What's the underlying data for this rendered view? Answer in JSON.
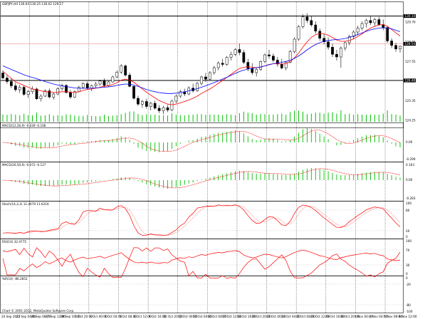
{
  "window": {
    "title": "GBPJPY,H4  130.04 130.25 130.02 129.17",
    "status_bar": "Chart © 2001-2012, MetaQuotes Software Corp."
  },
  "colors": {
    "background": "#ffffff",
    "grid": "#000000",
    "candle": "#000000",
    "ma_fast": "#ff0000",
    "ma_slow": "#0000ff",
    "macd_hist": "#00c000",
    "signal": "#ff0000",
    "oscillator": "#ff0000",
    "level_line": "#ff0000",
    "price_tag": "#000000"
  },
  "icons": {
    "window_control": "chart-tab-icon"
  },
  "price_panel": {
    "y_ticks": [
      "130.10",
      "129.76",
      "128.65",
      "127.55",
      "126.45",
      "125.35",
      "124.25"
    ],
    "price_tags": [
      "130.10",
      "128.54",
      "126.48"
    ],
    "hlines": [
      130.1,
      126.48
    ],
    "current_line": 128.54
  },
  "macd1": {
    "label": "MACD(12,26,9) -0.039 -0.106",
    "y_ticks": [
      "0.00",
      "-0.299"
    ]
  },
  "macd2": {
    "label": "MACD(26,50,9) -0.072 -0.127",
    "y_ticks": [
      "0.163",
      "0.00",
      "-0.283"
    ]
  },
  "stoch": {
    "label": "Stoch(14,3,3) 11.4679 11.6216",
    "y_ticks": [
      "100",
      "80",
      "20",
      "0"
    ]
  },
  "rsi": {
    "label": "RSI(14) 32.4775",
    "y_ticks": [
      "100",
      "70",
      "30",
      "0"
    ]
  },
  "wpr": {
    "label": "%R(14) -86.2852",
    "y_ticks": [
      "0",
      "-20",
      "-80",
      "-100"
    ]
  },
  "x_labels": [
    "24 Sep 2012",
    "25 Sep 04:00",
    "26 Sep 08:00",
    "27 Sep 12:00",
    "28 Sep 16:00",
    "1 Oct 20:00",
    "3 Oct 00:00",
    "4 Oct 04:00",
    "5 Oct 08:00",
    "8 Oct 12:00",
    "9 Oct 16:00",
    "10 Oct 20:00",
    "12 Oct 00:00",
    "15 Oct 04:00",
    "16 Oct 08:00",
    "17 Oct 12:00",
    "18 Oct 16:00",
    "19 Oct 20:00",
    "23 Oct 00:00",
    "24 Oct 04:00",
    "25 Oct 08:00",
    "26 Oct 12:00",
    "29 Oct 16:00",
    "30 Oct 20:00",
    "1 Nov 00:00",
    "2 Nov 04:00",
    "5 Nov 08:00",
    "6 Nov 12:00"
  ],
  "chart_data": {
    "type": "candlestick",
    "symbol": "GBPJPY",
    "timeframe": "H4",
    "ohlc": [
      [
        126.9,
        127.05,
        126.55,
        126.62
      ],
      [
        126.62,
        126.78,
        126.3,
        126.42
      ],
      [
        126.42,
        126.6,
        126.05,
        126.18
      ],
      [
        126.18,
        126.35,
        125.85,
        125.96
      ],
      [
        125.96,
        126.22,
        125.78,
        126.1
      ],
      [
        126.1,
        126.2,
        125.62,
        125.7
      ],
      [
        125.7,
        125.95,
        125.5,
        125.85
      ],
      [
        125.85,
        126.15,
        125.72,
        126.0
      ],
      [
        126.0,
        126.08,
        125.38,
        125.45
      ],
      [
        125.45,
        125.7,
        125.3,
        125.6
      ],
      [
        125.6,
        125.98,
        125.55,
        125.9
      ],
      [
        125.9,
        126.02,
        125.48,
        125.55
      ],
      [
        125.55,
        125.8,
        125.4,
        125.72
      ],
      [
        125.72,
        126.1,
        125.65,
        126.02
      ],
      [
        126.02,
        126.3,
        125.9,
        126.2
      ],
      [
        126.2,
        126.28,
        125.75,
        125.8
      ],
      [
        125.8,
        125.95,
        125.45,
        125.55
      ],
      [
        125.55,
        125.92,
        125.5,
        125.85
      ],
      [
        125.85,
        126.18,
        125.8,
        126.1
      ],
      [
        126.1,
        126.38,
        126.0,
        126.3
      ],
      [
        126.3,
        126.42,
        125.95,
        126.05
      ],
      [
        126.05,
        126.25,
        125.88,
        126.18
      ],
      [
        126.18,
        126.4,
        126.05,
        126.28
      ],
      [
        126.28,
        126.52,
        126.18,
        126.45
      ],
      [
        126.45,
        126.6,
        126.1,
        126.2
      ],
      [
        126.2,
        126.48,
        126.12,
        126.4
      ],
      [
        126.4,
        126.75,
        126.35,
        126.68
      ],
      [
        126.68,
        127.05,
        126.6,
        126.95
      ],
      [
        126.95,
        127.4,
        126.85,
        127.3
      ],
      [
        127.3,
        127.38,
        126.7,
        126.78
      ],
      [
        126.78,
        126.92,
        126.1,
        126.15
      ],
      [
        126.15,
        126.22,
        125.4,
        125.48
      ],
      [
        125.48,
        125.62,
        125.05,
        125.15
      ],
      [
        125.15,
        125.4,
        124.95,
        125.3
      ],
      [
        125.3,
        125.45,
        124.9,
        125.02
      ],
      [
        125.02,
        125.28,
        124.8,
        125.2
      ],
      [
        125.2,
        125.35,
        124.85,
        124.92
      ],
      [
        124.92,
        125.1,
        124.65,
        124.78
      ],
      [
        124.78,
        125.05,
        124.6,
        124.95
      ],
      [
        124.95,
        125.1,
        124.7,
        124.82
      ],
      [
        124.82,
        125.4,
        124.75,
        125.32
      ],
      [
        125.32,
        125.7,
        125.2,
        125.6
      ],
      [
        125.6,
        125.95,
        125.5,
        125.85
      ],
      [
        125.85,
        126.02,
        125.6,
        125.72
      ],
      [
        125.72,
        126.15,
        125.65,
        126.05
      ],
      [
        126.05,
        126.3,
        125.8,
        125.9
      ],
      [
        125.9,
        126.4,
        125.85,
        126.32
      ],
      [
        126.32,
        126.75,
        126.2,
        126.68
      ],
      [
        126.68,
        126.9,
        126.4,
        126.55
      ],
      [
        126.55,
        127.0,
        126.48,
        126.92
      ],
      [
        126.92,
        127.3,
        126.8,
        127.2
      ],
      [
        127.2,
        127.55,
        127.05,
        127.45
      ],
      [
        127.45,
        127.7,
        127.25,
        127.38
      ],
      [
        127.38,
        127.85,
        127.3,
        127.78
      ],
      [
        127.78,
        128.1,
        127.6,
        127.95
      ],
      [
        127.95,
        128.3,
        127.85,
        128.22
      ],
      [
        128.22,
        128.55,
        127.9,
        128.05
      ],
      [
        128.05,
        128.2,
        127.4,
        127.5
      ],
      [
        127.5,
        127.7,
        127.0,
        127.15
      ],
      [
        127.15,
        127.45,
        126.8,
        126.92
      ],
      [
        126.92,
        127.2,
        126.7,
        127.1
      ],
      [
        127.1,
        127.6,
        127.02,
        127.55
      ],
      [
        127.55,
        128.0,
        127.45,
        127.92
      ],
      [
        127.92,
        128.2,
        127.7,
        127.85
      ],
      [
        127.85,
        128.0,
        127.5,
        127.62
      ],
      [
        127.62,
        127.8,
        127.25,
        127.4
      ],
      [
        127.4,
        127.7,
        127.1,
        127.18
      ],
      [
        127.18,
        127.55,
        127.05,
        127.5
      ],
      [
        127.5,
        128.2,
        127.45,
        128.1
      ],
      [
        128.1,
        128.9,
        128.0,
        128.8
      ],
      [
        128.8,
        129.6,
        128.7,
        129.5
      ],
      [
        129.5,
        130.2,
        129.4,
        130.05
      ],
      [
        130.05,
        130.25,
        129.7,
        129.85
      ],
      [
        129.85,
        130.1,
        129.5,
        129.6
      ],
      [
        129.6,
        129.8,
        129.1,
        129.25
      ],
      [
        129.25,
        129.4,
        128.7,
        128.85
      ],
      [
        128.85,
        129.1,
        128.5,
        128.65
      ],
      [
        128.65,
        128.9,
        128.2,
        128.35
      ],
      [
        128.35,
        128.55,
        127.8,
        127.95
      ],
      [
        127.95,
        128.2,
        127.6,
        127.8
      ],
      [
        127.8,
        128.4,
        127.2,
        128.3
      ],
      [
        128.3,
        128.7,
        128.15,
        128.6
      ],
      [
        128.6,
        129.05,
        128.45,
        128.95
      ],
      [
        128.95,
        129.3,
        128.8,
        129.2
      ],
      [
        129.2,
        129.55,
        129.0,
        129.42
      ],
      [
        129.42,
        129.8,
        129.3,
        129.68
      ],
      [
        129.68,
        129.95,
        129.45,
        129.85
      ],
      [
        129.85,
        130.1,
        129.6,
        129.72
      ],
      [
        129.72,
        130.0,
        129.5,
        129.9
      ],
      [
        129.9,
        130.05,
        129.55,
        129.62
      ],
      [
        129.62,
        129.9,
        129.3,
        129.45
      ],
      [
        129.45,
        129.55,
        128.6,
        128.7
      ],
      [
        128.7,
        128.85,
        128.3,
        128.45
      ],
      [
        128.45,
        128.6,
        128.1,
        128.25
      ],
      [
        128.25,
        128.45,
        128.05,
        128.4
      ]
    ],
    "ma_fast": [
      127.0,
      126.8,
      126.6,
      126.4,
      126.3,
      126.2,
      126.1,
      126.0,
      125.95,
      125.9,
      125.85,
      125.85,
      125.8,
      125.82,
      125.85,
      125.85,
      125.82,
      125.8,
      125.85,
      125.92,
      125.98,
      126.0,
      126.05,
      126.1,
      126.15,
      126.18,
      126.25,
      126.35,
      126.5,
      126.55,
      126.5,
      126.38,
      126.2,
      126.0,
      125.82,
      125.65,
      125.5,
      125.35,
      125.25,
      125.15,
      125.12,
      125.15,
      125.22,
      125.3,
      125.38,
      125.48,
      125.6,
      125.75,
      125.88,
      126.0,
      126.15,
      126.32,
      126.48,
      126.65,
      126.82,
      127.0,
      127.15,
      127.22,
      127.25,
      127.22,
      127.2,
      127.22,
      127.3,
      127.38,
      127.42,
      127.42,
      127.4,
      127.42,
      127.55,
      127.75,
      128.02,
      128.35,
      128.65,
      128.9,
      129.05,
      129.12,
      129.1,
      129.02,
      128.9,
      128.75,
      128.68,
      128.68,
      128.72,
      128.82,
      128.95,
      129.1,
      129.28,
      129.42,
      129.52,
      129.6,
      129.62,
      129.52,
      129.35,
      129.15,
      128.98
    ],
    "ma_slow": [
      127.3,
      127.2,
      127.1,
      127.0,
      126.9,
      126.8,
      126.72,
      126.65,
      126.58,
      126.5,
      126.42,
      126.35,
      126.28,
      126.22,
      126.18,
      126.14,
      126.1,
      126.06,
      126.04,
      126.04,
      126.04,
      126.05,
      126.06,
      126.08,
      126.1,
      126.12,
      126.15,
      126.2,
      126.25,
      126.28,
      126.27,
      126.22,
      126.15,
      126.06,
      125.97,
      125.9,
      125.85,
      125.8,
      125.77,
      125.75,
      125.75,
      125.77,
      125.8,
      125.84,
      125.9,
      125.96,
      126.02,
      126.1,
      126.18,
      126.27,
      126.36,
      126.46,
      126.56,
      126.66,
      126.77,
      126.88,
      126.98,
      127.06,
      127.12,
      127.16,
      127.2,
      127.24,
      127.3,
      127.36,
      127.42,
      127.46,
      127.5,
      127.55,
      127.62,
      127.72,
      127.86,
      128.02,
      128.2,
      128.36,
      128.5,
      128.6,
      128.68,
      128.73,
      128.76,
      128.78,
      128.8,
      128.84,
      128.9,
      128.98,
      129.06,
      129.15,
      129.24,
      129.32,
      129.38,
      129.42,
      129.44,
      129.42,
      129.38,
      129.3,
      129.22
    ]
  }
}
